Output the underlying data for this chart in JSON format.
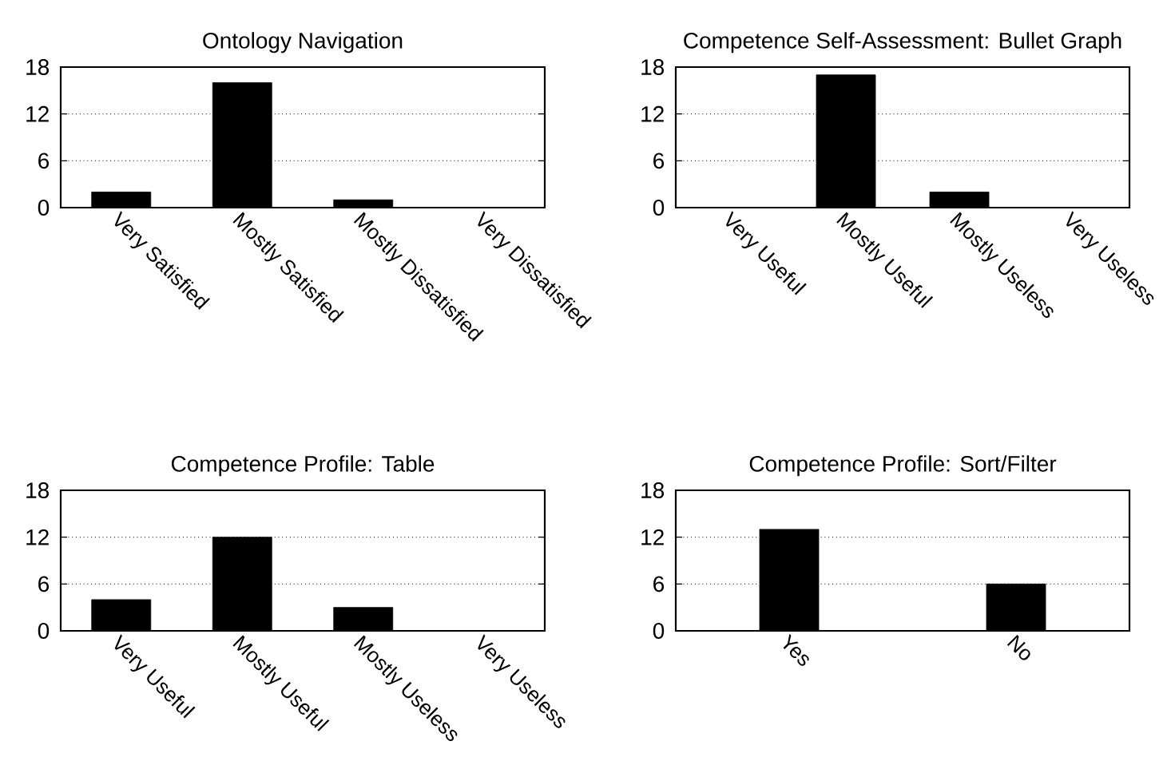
{
  "chart_data": [
    {
      "type": "bar",
      "title": "Ontology Navigation",
      "categories": [
        "Very Satisfied",
        "Mostly Satisfied",
        "Mostly Dissatisfied",
        "Very Dissatisfied"
      ],
      "values": [
        2,
        16,
        1,
        0
      ],
      "color": "#000000",
      "ylim": [
        0,
        18
      ],
      "yticks": [
        0,
        6,
        12,
        18
      ],
      "grid": "y"
    },
    {
      "type": "bar",
      "title": "Competence Self-Assessment: Bullet Graph",
      "categories": [
        "Very Useful",
        "Mostly Useful",
        "Mostly Useless",
        "Very Useless"
      ],
      "values": [
        0,
        17,
        2,
        0
      ],
      "color": "#000000",
      "ylim": [
        0,
        18
      ],
      "yticks": [
        0,
        6,
        12,
        18
      ],
      "grid": "y"
    },
    {
      "type": "bar",
      "title": "Competence Profile: Table",
      "categories": [
        "Very Useful",
        "Mostly Useful",
        "Mostly Useless",
        "Very Useless"
      ],
      "values": [
        4,
        12,
        3,
        0
      ],
      "color": "#000000",
      "ylim": [
        0,
        18
      ],
      "yticks": [
        0,
        6,
        12,
        18
      ],
      "grid": "y"
    },
    {
      "type": "bar",
      "title": "Competence Profile: Sort/Filter",
      "categories": [
        "Yes",
        "No"
      ],
      "values": [
        13,
        6
      ],
      "color": "#000000",
      "ylim": [
        0,
        18
      ],
      "yticks": [
        0,
        6,
        12,
        18
      ],
      "grid": "y"
    }
  ]
}
